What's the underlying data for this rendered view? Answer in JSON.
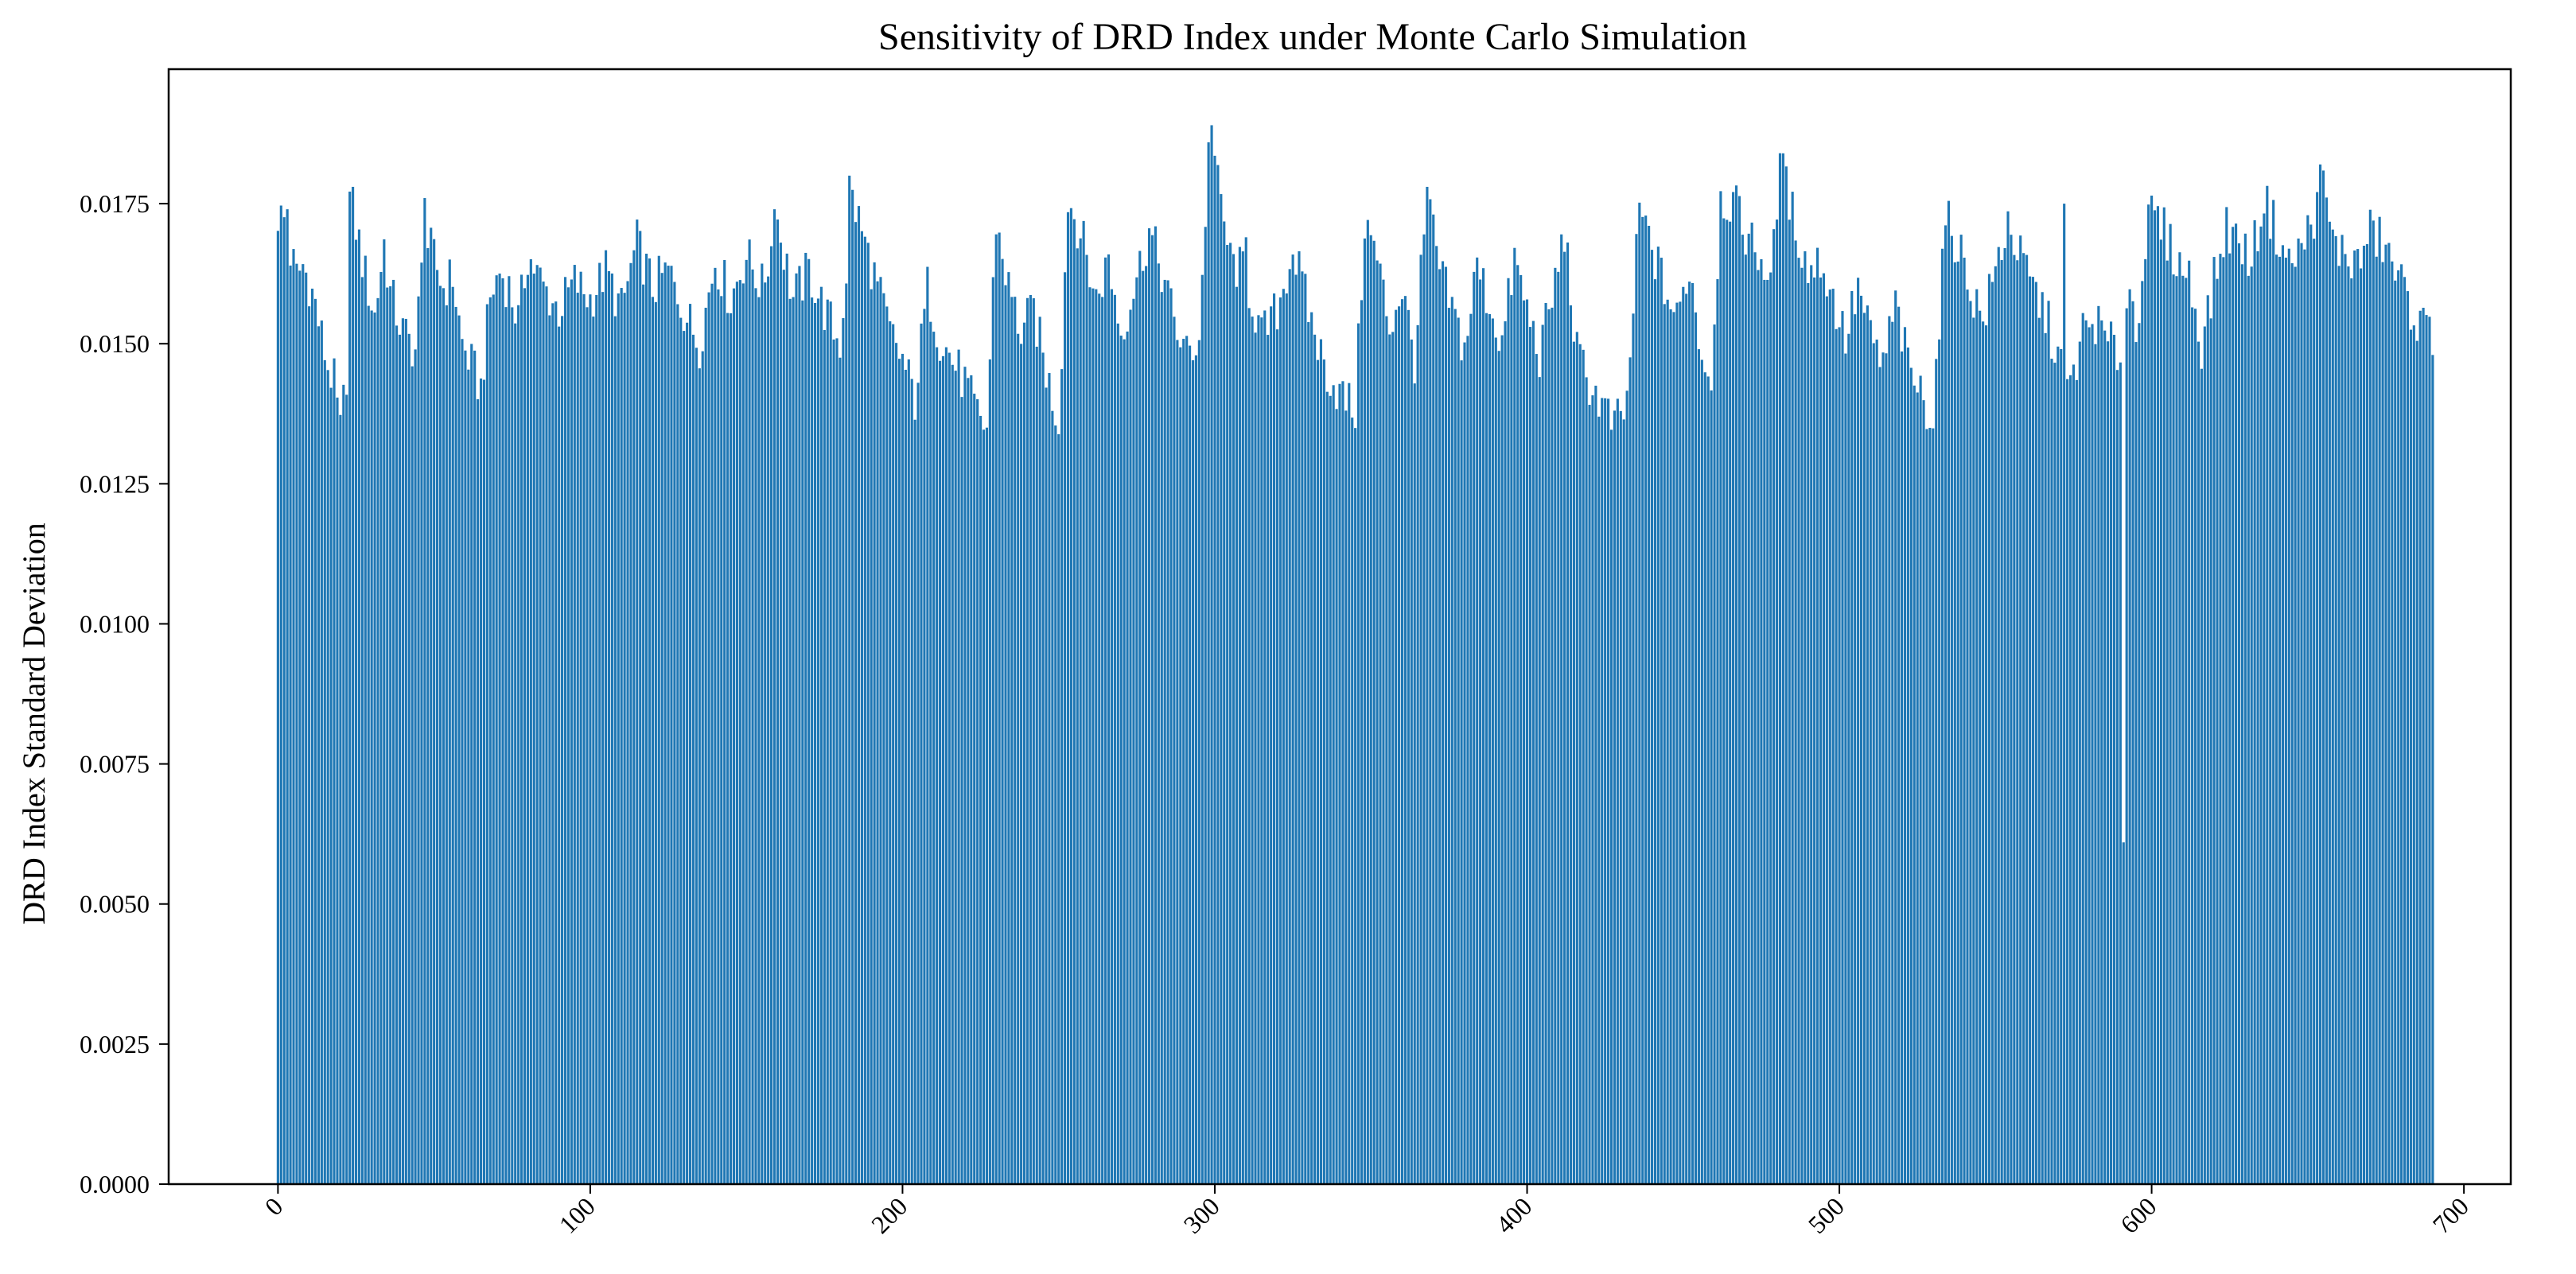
{
  "chart_data": {
    "type": "bar",
    "title": "Sensitivity of DRD Index under Monte Carlo Simulation",
    "xlabel": "",
    "ylabel": "DRD Index Standard Deviation",
    "xlim": [
      -35,
      715
    ],
    "ylim": [
      0,
      0.0199
    ],
    "x_ticks": [
      0,
      100,
      200,
      300,
      400,
      500,
      600,
      700
    ],
    "x_tick_labels": [
      "0",
      "100",
      "200",
      "300",
      "400",
      "500",
      "600",
      "700"
    ],
    "x_tick_rotation": 45,
    "y_ticks": [
      0,
      0.0025,
      0.005,
      0.0075,
      0.01,
      0.0125,
      0.015,
      0.0175
    ],
    "y_tick_labels": [
      "0.0000",
      "0.0025",
      "0.0050",
      "0.0075",
      "0.0100",
      "0.0125",
      "0.0150",
      "0.0175"
    ],
    "bar_color": "#1f77b4",
    "grid": false,
    "x": [
      0,
      690
    ],
    "anchors": [
      [
        0,
        0.0173
      ],
      [
        2,
        0.0172
      ],
      [
        4,
        0.0166
      ],
      [
        6,
        0.0162
      ],
      [
        8,
        0.0164
      ],
      [
        10,
        0.0161
      ],
      [
        12,
        0.0157
      ],
      [
        14,
        0.0151
      ],
      [
        16,
        0.0146
      ],
      [
        18,
        0.0143
      ],
      [
        20,
        0.0134
      ],
      [
        22,
        0.0145
      ],
      [
        23,
        0.0176
      ],
      [
        25,
        0.0171
      ],
      [
        28,
        0.0162
      ],
      [
        31,
        0.0155
      ],
      [
        34,
        0.0168
      ],
      [
        36,
        0.0159
      ],
      [
        40,
        0.0152
      ],
      [
        44,
        0.0149
      ],
      [
        47,
        0.0169
      ],
      [
        50,
        0.0165
      ],
      [
        53,
        0.016
      ],
      [
        56,
        0.0162
      ],
      [
        59,
        0.015
      ],
      [
        62,
        0.0146
      ],
      [
        65,
        0.0142
      ],
      [
        68,
        0.0158
      ],
      [
        71,
        0.0163
      ],
      [
        74,
        0.016
      ],
      [
        77,
        0.0154
      ],
      [
        80,
        0.0166
      ],
      [
        85,
        0.016
      ],
      [
        90,
        0.0156
      ],
      [
        95,
        0.0161
      ],
      [
        100,
        0.0158
      ],
      [
        105,
        0.0163
      ],
      [
        110,
        0.0156
      ],
      [
        115,
        0.0168
      ],
      [
        120,
        0.016
      ],
      [
        125,
        0.0163
      ],
      [
        130,
        0.0156
      ],
      [
        135,
        0.015
      ],
      [
        140,
        0.0165
      ],
      [
        145,
        0.0158
      ],
      [
        150,
        0.0166
      ],
      [
        155,
        0.016
      ],
      [
        160,
        0.0172
      ],
      [
        165,
        0.0158
      ],
      [
        170,
        0.0163
      ],
      [
        175,
        0.0156
      ],
      [
        180,
        0.015
      ],
      [
        184,
        0.0176
      ],
      [
        188,
        0.0168
      ],
      [
        192,
        0.016
      ],
      [
        196,
        0.0152
      ],
      [
        200,
        0.0147
      ],
      [
        204,
        0.014
      ],
      [
        208,
        0.016
      ],
      [
        212,
        0.0151
      ],
      [
        216,
        0.0147
      ],
      [
        220,
        0.0143
      ],
      [
        224,
        0.0137
      ],
      [
        227,
        0.0135
      ],
      [
        230,
        0.0172
      ],
      [
        234,
        0.016
      ],
      [
        238,
        0.0152
      ],
      [
        242,
        0.0156
      ],
      [
        246,
        0.0145
      ],
      [
        250,
        0.0136
      ],
      [
        253,
        0.0176
      ],
      [
        257,
        0.017
      ],
      [
        262,
        0.0158
      ],
      [
        266,
        0.0165
      ],
      [
        270,
        0.0152
      ],
      [
        274,
        0.016
      ],
      [
        279,
        0.017
      ],
      [
        283,
        0.0163
      ],
      [
        287,
        0.0154
      ],
      [
        291,
        0.0148
      ],
      [
        295,
        0.0151
      ],
      [
        298,
        0.0184
      ],
      [
        299,
        0.0188
      ],
      [
        301,
        0.0178
      ],
      [
        305,
        0.0165
      ],
      [
        310,
        0.0162
      ],
      [
        315,
        0.0151
      ],
      [
        320,
        0.0156
      ],
      [
        325,
        0.0167
      ],
      [
        330,
        0.0156
      ],
      [
        335,
        0.0146
      ],
      [
        340,
        0.0141
      ],
      [
        345,
        0.0138
      ],
      [
        348,
        0.0172
      ],
      [
        352,
        0.0165
      ],
      [
        356,
        0.0153
      ],
      [
        360,
        0.016
      ],
      [
        364,
        0.0147
      ],
      [
        368,
        0.0176
      ],
      [
        372,
        0.0163
      ],
      [
        376,
        0.0156
      ],
      [
        380,
        0.0149
      ],
      [
        384,
        0.0164
      ],
      [
        388,
        0.0157
      ],
      [
        392,
        0.015
      ],
      [
        396,
        0.0165
      ],
      [
        400,
        0.0156
      ],
      [
        404,
        0.0148
      ],
      [
        408,
        0.0158
      ],
      [
        412,
        0.017
      ],
      [
        416,
        0.0148
      ],
      [
        420,
        0.0143
      ],
      [
        424,
        0.0139
      ],
      [
        428,
        0.0135
      ],
      [
        432,
        0.0139
      ],
      [
        436,
        0.0174
      ],
      [
        440,
        0.0167
      ],
      [
        444,
        0.016
      ],
      [
        448,
        0.0154
      ],
      [
        452,
        0.0164
      ],
      [
        456,
        0.0148
      ],
      [
        459,
        0.0144
      ],
      [
        462,
        0.0176
      ],
      [
        466,
        0.0175
      ],
      [
        470,
        0.017
      ],
      [
        474,
        0.0166
      ],
      [
        478,
        0.0162
      ],
      [
        482,
        0.018
      ],
      [
        486,
        0.0171
      ],
      [
        490,
        0.0163
      ],
      [
        494,
        0.0165
      ],
      [
        498,
        0.0158
      ],
      [
        502,
        0.0151
      ],
      [
        506,
        0.016
      ],
      [
        510,
        0.0151
      ],
      [
        514,
        0.0146
      ],
      [
        518,
        0.0157
      ],
      [
        522,
        0.0146
      ],
      [
        526,
        0.0141
      ],
      [
        530,
        0.0137
      ],
      [
        534,
        0.0172
      ],
      [
        538,
        0.0168
      ],
      [
        542,
        0.016
      ],
      [
        546,
        0.0154
      ],
      [
        550,
        0.0163
      ],
      [
        554,
        0.0172
      ],
      [
        558,
        0.0165
      ],
      [
        562,
        0.016
      ],
      [
        566,
        0.0155
      ],
      [
        570,
        0.0148
      ],
      [
        574,
        0.0142
      ],
      [
        578,
        0.0152
      ],
      [
        582,
        0.0154
      ],
      [
        586,
        0.015
      ],
      [
        590,
        0.0148
      ],
      [
        593,
        0.016
      ],
      [
        595,
        0.0153
      ],
      [
        598,
        0.0168
      ],
      [
        600,
        0.0173
      ],
      [
        604,
        0.017
      ],
      [
        608,
        0.0165
      ],
      [
        612,
        0.0162
      ],
      [
        616,
        0.015
      ],
      [
        620,
        0.0161
      ],
      [
        624,
        0.0171
      ],
      [
        628,
        0.0168
      ],
      [
        632,
        0.0165
      ],
      [
        636,
        0.0176
      ],
      [
        640,
        0.017
      ],
      [
        644,
        0.0164
      ],
      [
        648,
        0.0167
      ],
      [
        652,
        0.0173
      ],
      [
        655,
        0.0179
      ],
      [
        658,
        0.0168
      ],
      [
        662,
        0.0166
      ],
      [
        666,
        0.0164
      ],
      [
        670,
        0.017
      ],
      [
        674,
        0.0168
      ],
      [
        678,
        0.0163
      ],
      [
        682,
        0.0158
      ],
      [
        686,
        0.0153
      ],
      [
        690,
        0.0152
      ]
    ],
    "spikes": [
      [
        3,
        0.0174
      ],
      [
        24,
        0.0178
      ],
      [
        47,
        0.0176
      ],
      [
        159,
        0.0174
      ],
      [
        183,
        0.018
      ],
      [
        299,
        0.0189
      ],
      [
        481,
        0.0184
      ],
      [
        591,
        0.0061
      ],
      [
        654,
        0.0182
      ],
      [
        572,
        0.0175
      ],
      [
        310,
        0.0169
      ],
      [
        368,
        0.0178
      ]
    ]
  }
}
